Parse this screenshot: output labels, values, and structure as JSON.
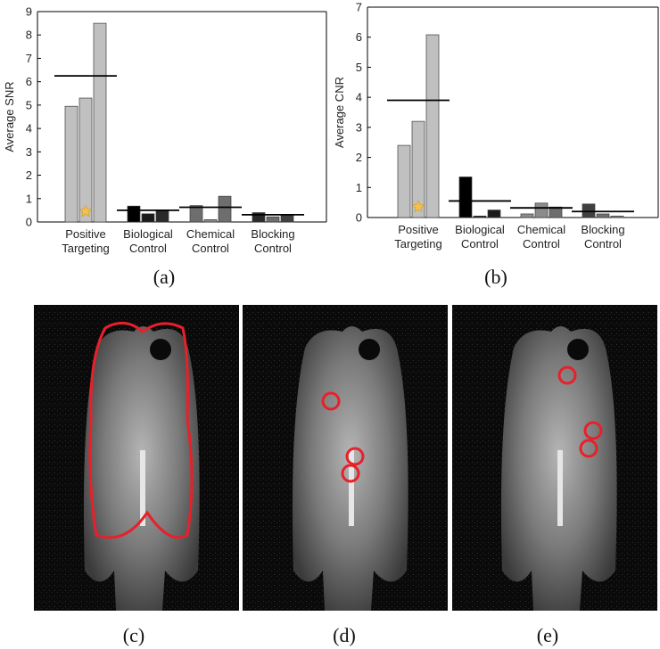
{
  "chart_data": [
    {
      "type": "bar",
      "panel_label": "(a)",
      "ylabel": "Average SNR",
      "ylim": [
        0,
        9
      ],
      "yticks": [
        0,
        1,
        2,
        3,
        4,
        5,
        6,
        7,
        8,
        9
      ],
      "groups": [
        {
          "label": [
            "Positive",
            "Targeting"
          ],
          "values": [
            4.95,
            5.3,
            8.5
          ],
          "colors": [
            "#c0c0c0",
            "#c0c0c0",
            "#c0c0c0"
          ],
          "mean": 6.25,
          "star": true
        },
        {
          "label": [
            "Biological",
            "Control"
          ],
          "values": [
            0.68,
            0.35,
            0.5
          ],
          "colors": [
            "#000000",
            "#1a1a1a",
            "#2a2a2a"
          ],
          "mean": 0.5
        },
        {
          "label": [
            "Chemical",
            "Control"
          ],
          "values": [
            0.7,
            0.1,
            1.1
          ],
          "colors": [
            "#6e6e6e",
            "#8c8c8c",
            "#6e6e6e"
          ],
          "mean": 0.63
        },
        {
          "label": [
            "Blocking",
            "Control"
          ],
          "values": [
            0.4,
            0.22,
            0.3
          ],
          "colors": [
            "#2a2a2a",
            "#6e6e6e",
            "#404040"
          ],
          "mean": 0.31
        }
      ]
    },
    {
      "type": "bar",
      "panel_label": "(b)",
      "ylabel": "Average CNR",
      "ylim": [
        0,
        7
      ],
      "yticks": [
        0,
        1,
        2,
        3,
        4,
        5,
        6,
        7
      ],
      "groups": [
        {
          "label": [
            "Positive",
            "Targeting"
          ],
          "values": [
            2.4,
            3.2,
            6.08
          ],
          "colors": [
            "#c0c0c0",
            "#c0c0c0",
            "#c0c0c0"
          ],
          "mean": 3.9,
          "star": true
        },
        {
          "label": [
            "Biological",
            "Control"
          ],
          "values": [
            1.35,
            0.05,
            0.25
          ],
          "colors": [
            "#000000",
            "#1a1a1a",
            "#1a1a1a"
          ],
          "mean": 0.55
        },
        {
          "label": [
            "Chemical",
            "Control"
          ],
          "values": [
            0.12,
            0.48,
            0.35
          ],
          "colors": [
            "#8c8c8c",
            "#8c8c8c",
            "#6e6e6e"
          ],
          "mean": 0.32
        },
        {
          "label": [
            "Blocking",
            "Control"
          ],
          "values": [
            0.45,
            0.12,
            0.05
          ],
          "colors": [
            "#404040",
            "#6e6e6e",
            "#8c8c8c"
          ],
          "mean": 0.2
        }
      ]
    }
  ],
  "images": [
    {
      "label": "(c)"
    },
    {
      "label": "(d)"
    },
    {
      "label": "(e)"
    }
  ],
  "colors": {
    "roi": "#e8202a",
    "star": "#f2c14e",
    "mean_line": "#000000"
  }
}
